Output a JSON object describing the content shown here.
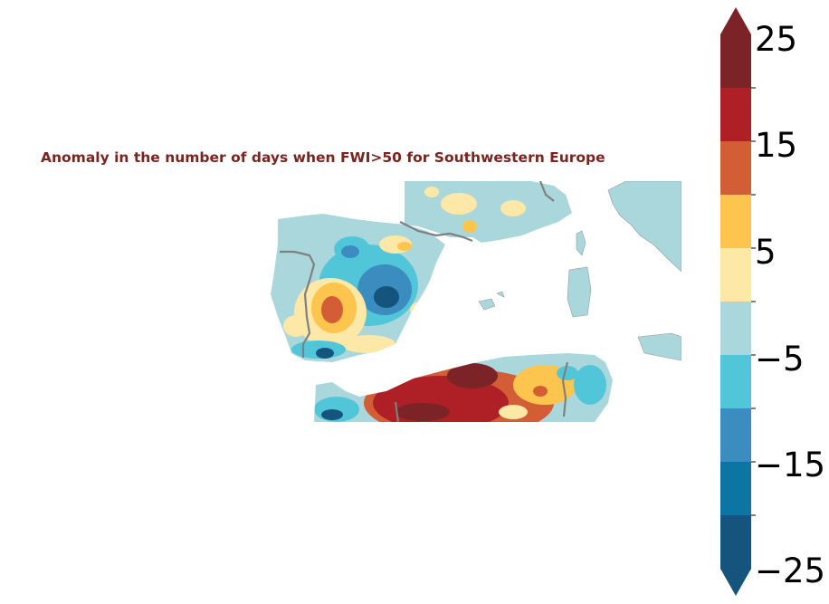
{
  "title": "Anomaly in the number of days when FWI>50 for Southwestern Europe",
  "colorbar": {
    "min": -25,
    "max": 25,
    "extend": "both",
    "tick_labels": [
      "25",
      "15",
      "5",
      "−5",
      "−15",
      "−25"
    ],
    "levels": [
      {
        "from": 20,
        "to": 25,
        "color": "#7b2327"
      },
      {
        "from": 15,
        "to": 20,
        "color": "#ae2026"
      },
      {
        "from": 10,
        "to": 15,
        "color": "#d35e36"
      },
      {
        "from": 5,
        "to": 10,
        "color": "#fdc44e"
      },
      {
        "from": 0,
        "to": 5,
        "color": "#fde8a7"
      },
      {
        "from": -5,
        "to": 0,
        "color": "#a9d7dc"
      },
      {
        "from": -10,
        "to": -5,
        "color": "#52c6d9"
      },
      {
        "from": -15,
        "to": -10,
        "color": "#3a8dbe"
      },
      {
        "from": -20,
        "to": -15,
        "color": "#0d75a4"
      },
      {
        "from": -25,
        "to": -20,
        "color": "#15547c"
      }
    ]
  },
  "map": {
    "region": "Southwestern Europe",
    "land_base_color": "#a9d7dc",
    "border_color": "#808080"
  }
}
